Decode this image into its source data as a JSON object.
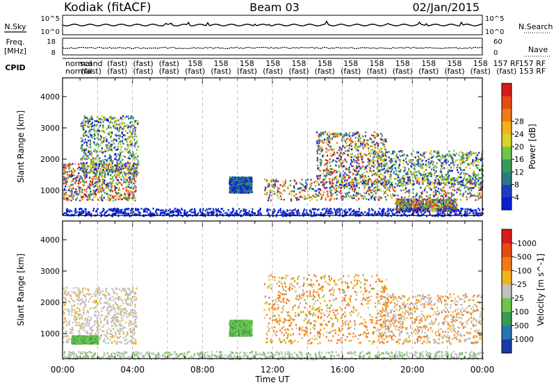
{
  "header": {
    "station": "Kodiak (fitACF)",
    "beam": "Beam 03",
    "date": "02/Jan/2015"
  },
  "status_panels": {
    "nsky": {
      "label": "N.Sky",
      "left_ticks": [
        "10^5",
        "10^0"
      ],
      "right_ticks": [
        "10^5",
        "10^0"
      ],
      "right_label": "N.Search"
    },
    "freq": {
      "label_line1": "Freq.",
      "label_line2": "[MHz]",
      "left_ticks": [
        "18",
        "8"
      ],
      "right_ticks": [
        "60",
        "0"
      ],
      "right_label": "Nave"
    },
    "cpid": {
      "label": "CPID",
      "row1": [
        "normal",
        "scand",
        "(fast)",
        "(fast)",
        "(fast)",
        "158",
        "158",
        "158",
        "158",
        "158",
        "158",
        "158",
        "158",
        "158",
        "158",
        "158",
        "158",
        "157 RF",
        "157 RF"
      ],
      "row2": [
        "normal",
        "(fast)",
        "(fast)",
        "(fast)",
        "(fast)",
        "(fast)",
        "(fast)",
        "(fast)",
        "(fast)",
        "(fast)",
        "(fast)",
        "(fast)",
        "(fast)",
        "(fast)",
        "(fast)",
        "(fast)",
        "(fast)",
        "(fast)",
        "153 RF"
      ]
    }
  },
  "chart_data": [
    {
      "type": "heatmap",
      "name": "power",
      "xlabel": "",
      "ylabel": "Slant Range [km]",
      "x_range_hours": [
        0,
        24
      ],
      "ylim": [
        200,
        4600
      ],
      "yticks": [
        1000,
        2000,
        3000,
        4000
      ],
      "colorbar": {
        "label": "Power [dB]",
        "ticks": [
          "4",
          "8",
          "12",
          "16",
          "20",
          "24",
          "28"
        ],
        "colors": [
          "#0a1fd6",
          "#1c3fc4",
          "#2a7a82",
          "#3a9a55",
          "#6ec44c",
          "#d9d22a",
          "#f2b21c",
          "#f07a18",
          "#e84a14",
          "#d71a1a"
        ]
      },
      "features": [
        {
          "t": [
            0.0,
            4.2
          ],
          "r": [
            700,
            1900
          ],
          "strength": "high"
        },
        {
          "t": [
            1.0,
            4.3
          ],
          "r": [
            1500,
            3400
          ],
          "strength": "medium"
        },
        {
          "t": [
            9.5,
            10.8
          ],
          "r": [
            950,
            1450
          ],
          "strength": "low"
        },
        {
          "t": [
            11.5,
            24.0
          ],
          "r": [
            700,
            1400
          ],
          "strength": "high"
        },
        {
          "t": [
            14.5,
            18.5
          ],
          "r": [
            1100,
            2900
          ],
          "strength": "high"
        },
        {
          "t": [
            18.0,
            24.0
          ],
          "r": [
            1200,
            2300
          ],
          "strength": "medium"
        },
        {
          "t": [
            19.0,
            22.5
          ],
          "r": [
            350,
            750
          ],
          "strength": "high"
        },
        {
          "t": [
            0.0,
            24.0
          ],
          "r": [
            200,
            450
          ],
          "strength": "low",
          "kind": "ground_noise"
        }
      ]
    },
    {
      "type": "heatmap",
      "name": "velocity",
      "xlabel": "Time UT",
      "ylabel": "Slant Range [km]",
      "x_range_hours": [
        0,
        24
      ],
      "xticks": [
        "00:00",
        "04:00",
        "08:00",
        "12:00",
        "16:00",
        "20:00",
        "00:00"
      ],
      "ylim": [
        200,
        4600
      ],
      "yticks": [
        1000,
        2000,
        3000,
        4000
      ],
      "colorbar": {
        "label": "Velocity [m s^-1]",
        "ticks": [
          "1000",
          "500",
          "100",
          "25",
          "-25",
          "-100",
          "-500",
          "-1000"
        ],
        "colors": [
          "#1a3aa6",
          "#2a76b0",
          "#3a9a55",
          "#6ec44c",
          "#c0c0c0",
          "#f2b21c",
          "#f07a18",
          "#e84a14",
          "#d71a1a"
        ]
      },
      "features": [
        {
          "t": [
            0.0,
            4.2
          ],
          "r": [
            700,
            2500
          ],
          "class": "gray"
        },
        {
          "t": [
            0.5,
            2.0
          ],
          "r": [
            700,
            950
          ],
          "class": "green"
        },
        {
          "t": [
            9.5,
            10.8
          ],
          "r": [
            950,
            1450
          ],
          "class": "green"
        },
        {
          "t": [
            11.5,
            18.5
          ],
          "r": [
            700,
            2900
          ],
          "class": "orange"
        },
        {
          "t": [
            18.0,
            24.0
          ],
          "r": [
            700,
            2300
          ],
          "class": "orange_gray"
        },
        {
          "t": [
            0.0,
            24.0
          ],
          "r": [
            200,
            450
          ],
          "class": "gray_noise"
        }
      ]
    }
  ]
}
